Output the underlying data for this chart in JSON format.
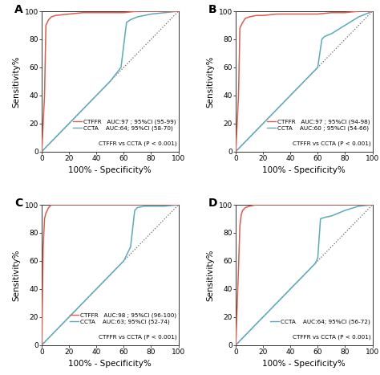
{
  "panels": [
    {
      "label": "A",
      "ctffr_curve": [
        [
          0,
          0
        ],
        [
          2,
          40
        ],
        [
          3,
          90
        ],
        [
          5,
          94
        ],
        [
          7,
          96
        ],
        [
          10,
          97
        ],
        [
          20,
          98
        ],
        [
          30,
          99
        ],
        [
          40,
          99
        ],
        [
          50,
          99
        ],
        [
          60,
          99
        ],
        [
          70,
          100
        ],
        [
          80,
          100
        ],
        [
          90,
          100
        ],
        [
          100,
          100
        ]
      ],
      "ccta_curve": [
        [
          0,
          0
        ],
        [
          5,
          5
        ],
        [
          10,
          10
        ],
        [
          20,
          20
        ],
        [
          30,
          30
        ],
        [
          40,
          40
        ],
        [
          50,
          50
        ],
        [
          58,
          60
        ],
        [
          62,
          92
        ],
        [
          65,
          94
        ],
        [
          70,
          96
        ],
        [
          80,
          98
        ],
        [
          90,
          99
        ],
        [
          100,
          100
        ]
      ],
      "show_ctffr": true,
      "legend_lines": [
        "CTFFR   AUC:97 ; 95%CI (95-99)",
        "CCTA    AUC:64; 95%CI (58-70)",
        "CTFFR vs CCTA (P < 0.001)"
      ]
    },
    {
      "label": "B",
      "ctffr_curve": [
        [
          0,
          0
        ],
        [
          2,
          40
        ],
        [
          3,
          88
        ],
        [
          5,
          92
        ],
        [
          7,
          95
        ],
        [
          10,
          96
        ],
        [
          15,
          97
        ],
        [
          20,
          97
        ],
        [
          30,
          98
        ],
        [
          40,
          98
        ],
        [
          50,
          98
        ],
        [
          60,
          98
        ],
        [
          70,
          99
        ],
        [
          80,
          99
        ],
        [
          90,
          100
        ],
        [
          100,
          100
        ]
      ],
      "ccta_curve": [
        [
          0,
          0
        ],
        [
          5,
          5
        ],
        [
          10,
          10
        ],
        [
          20,
          20
        ],
        [
          30,
          30
        ],
        [
          40,
          40
        ],
        [
          50,
          50
        ],
        [
          60,
          60
        ],
        [
          63,
          80
        ],
        [
          65,
          82
        ],
        [
          70,
          84
        ],
        [
          80,
          90
        ],
        [
          90,
          96
        ],
        [
          100,
          100
        ]
      ],
      "show_ctffr": true,
      "legend_lines": [
        "CTFFR   AUC:97 ; 95%CI (94-98)",
        "CCTA    AUC:60 ; 95%CI (54-66)",
        "CTFFR vs CCTA (P < 0.001)"
      ]
    },
    {
      "label": "C",
      "ctffr_curve": [
        [
          0,
          0
        ],
        [
          1,
          70
        ],
        [
          2,
          90
        ],
        [
          3,
          94
        ],
        [
          5,
          98
        ],
        [
          7,
          100
        ],
        [
          10,
          100
        ],
        [
          20,
          100
        ],
        [
          30,
          100
        ],
        [
          40,
          100
        ],
        [
          50,
          100
        ],
        [
          60,
          100
        ],
        [
          70,
          100
        ],
        [
          80,
          100
        ],
        [
          90,
          100
        ],
        [
          100,
          100
        ]
      ],
      "ccta_curve": [
        [
          0,
          0
        ],
        [
          5,
          5
        ],
        [
          10,
          10
        ],
        [
          20,
          20
        ],
        [
          30,
          30
        ],
        [
          40,
          40
        ],
        [
          50,
          50
        ],
        [
          60,
          60
        ],
        [
          65,
          70
        ],
        [
          68,
          96
        ],
        [
          70,
          98
        ],
        [
          75,
          99
        ],
        [
          80,
          99
        ],
        [
          90,
          99
        ],
        [
          100,
          100
        ]
      ],
      "show_ctffr": true,
      "legend_lines": [
        "CTFFR   AUC:98 ; 95%CI (96-100)",
        "CCTA    AUC:63; 95%CI (52-74)",
        "CTFFR vs CCTA (P < 0.001)"
      ]
    },
    {
      "label": "D",
      "ctffr_curve": [
        [
          0,
          0
        ],
        [
          2,
          55
        ],
        [
          3,
          85
        ],
        [
          4,
          93
        ],
        [
          5,
          96
        ],
        [
          7,
          98
        ],
        [
          10,
          99
        ],
        [
          15,
          100
        ],
        [
          20,
          100
        ],
        [
          30,
          100
        ],
        [
          40,
          100
        ],
        [
          50,
          100
        ],
        [
          60,
          100
        ],
        [
          70,
          100
        ],
        [
          80,
          100
        ],
        [
          90,
          100
        ],
        [
          100,
          100
        ]
      ],
      "ccta_curve": [
        [
          0,
          0
        ],
        [
          5,
          5
        ],
        [
          10,
          10
        ],
        [
          20,
          20
        ],
        [
          30,
          30
        ],
        [
          40,
          40
        ],
        [
          50,
          50
        ],
        [
          58,
          58
        ],
        [
          60,
          62
        ],
        [
          62,
          90
        ],
        [
          65,
          91
        ],
        [
          70,
          92
        ],
        [
          80,
          96
        ],
        [
          90,
          99
        ],
        [
          100,
          100
        ]
      ],
      "show_ctffr": true,
      "legend_lines": [
        "CCTA    AUC:64; 95%CI (56-72)",
        "CTFFR vs CCTA (P < 0.001)"
      ]
    }
  ],
  "ctffr_color": "#e05a4e",
  "ccta_color": "#5aabba",
  "diagonal_color": "#666666",
  "bg_color": "#ffffff",
  "xlabel": "100% - Specificity%",
  "ylabel": "Sensitivity%",
  "xticks": [
    0,
    20,
    40,
    60,
    80,
    100
  ],
  "yticks": [
    0,
    20,
    40,
    60,
    80,
    100
  ],
  "tick_labels": [
    "0",
    "20",
    "40",
    "60",
    "80",
    "100"
  ],
  "axis_fontsize": 6.5,
  "label_fontsize": 7.5,
  "legend_fontsize": 5.2,
  "panel_label_fontsize": 10
}
